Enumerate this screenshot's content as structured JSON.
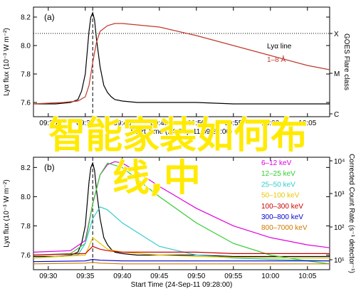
{
  "overlay": {
    "line1": "智能家装如何布",
    "line2": "线,中"
  },
  "chart_data": [
    {
      "panel": "(a)",
      "type": "line",
      "ylabel": "Lyα flux (10⁻³ W m⁻²)",
      "y2label": "GOES Flare class",
      "yticks": [
        "7.6",
        "7.8",
        "8.0",
        "8.2"
      ],
      "ylim": [
        7.5,
        8.27
      ],
      "xlim": [
        "09:28",
        "10:08"
      ],
      "xticks": [
        "09:30",
        "09:35",
        "09:40",
        "09:45",
        "09:50",
        "09:55",
        "10:00",
        "10:05"
      ],
      "class_ticks": [
        "X",
        "M",
        "C"
      ],
      "class_dotted_level": "X",
      "xlabel": "Start Time (24-Sep-11 09:28:00)",
      "marker_time": "09:36",
      "legend": [
        "Lyα line",
        "1–8 Å"
      ],
      "series": [
        {
          "name": "Lyα line",
          "color": "#000000",
          "x": [
            "09:28",
            "09:31",
            "09:33",
            "09:34",
            "09:34:30",
            "09:35",
            "09:35:15",
            "09:35:30",
            "09:35:45",
            "09:36",
            "09:36:15",
            "09:36:30",
            "09:37",
            "09:37:30",
            "09:38",
            "09:38:30",
            "09:39",
            "09:40",
            "09:42",
            "09:45",
            "09:50",
            "09:55",
            "10:00",
            "10:05",
            "10:08"
          ],
          "y": [
            7.59,
            7.59,
            7.6,
            7.62,
            7.68,
            7.8,
            7.95,
            8.1,
            8.2,
            8.23,
            8.18,
            8.05,
            7.85,
            7.72,
            7.67,
            7.64,
            7.62,
            7.61,
            7.6,
            7.6,
            7.6,
            7.59,
            7.59,
            7.59,
            7.59
          ]
        },
        {
          "name": "1–8 Å",
          "color": "#c0392b",
          "x": [
            "09:28",
            "09:32",
            "09:34",
            "09:35",
            "09:35:30",
            "09:36",
            "09:36:30",
            "09:37",
            "09:38",
            "09:39",
            "09:40",
            "09:45",
            "09:50",
            "09:55",
            "10:00",
            "10:05",
            "10:08"
          ],
          "y": [
            7.59,
            7.6,
            7.61,
            7.64,
            7.72,
            7.88,
            8.02,
            8.1,
            8.14,
            8.155,
            8.155,
            8.13,
            8.07,
            8.0,
            7.93,
            7.86,
            7.83
          ]
        }
      ]
    },
    {
      "panel": "(b)",
      "type": "line",
      "ylabel": "Lyα flux (10⁻³ W m⁻²)",
      "y2label": "Corrected Count Rate (s⁻¹ detector⁻¹)",
      "yticks": [
        "7.6",
        "7.8",
        "8.0",
        "8.2"
      ],
      "ylim": [
        7.5,
        8.27
      ],
      "y2ticks": [
        "10¹",
        "10²",
        "10³",
        "10⁴"
      ],
      "xlim": [
        "09:28",
        "10:08"
      ],
      "xticks": [
        "09:30",
        "09:35",
        "09:40",
        "09:45",
        "09:50",
        "09:55",
        "10:00",
        "10:05"
      ],
      "xticklabels": [
        "09:30",
        "09:35",
        "09:40",
        "09:45",
        "09:50",
        "09:55",
        "10:00",
        "10:05"
      ],
      "xlabel": "Start Time (24-Sep-11 09:28:00)",
      "marker_time": "09:36",
      "legend": [
        "6–12 keV",
        "12–25 keV",
        "25–50 keV",
        "50–100 keV",
        "100–300 keV",
        "300–800 keV",
        "800–7000 keV"
      ],
      "series": [
        {
          "name": "Lyα line",
          "color": "#000000",
          "x": [
            "09:28",
            "09:31",
            "09:33",
            "09:34",
            "09:34:30",
            "09:35",
            "09:35:15",
            "09:35:30",
            "09:35:45",
            "09:36",
            "09:36:15",
            "09:36:30",
            "09:37",
            "09:37:30",
            "09:38",
            "09:38:30",
            "09:39",
            "09:40",
            "09:42",
            "09:45",
            "09:50",
            "09:55",
            "10:00",
            "10:05",
            "10:08"
          ],
          "y": [
            7.59,
            7.59,
            7.6,
            7.62,
            7.68,
            7.8,
            7.95,
            8.1,
            8.2,
            8.23,
            8.18,
            8.05,
            7.85,
            7.72,
            7.67,
            7.64,
            7.62,
            7.61,
            7.6,
            7.6,
            7.6,
            7.59,
            7.59,
            7.59,
            7.59
          ]
        },
        {
          "name": "6–12 keV",
          "color": "#e000e0",
          "x": [
            "09:28",
            "09:33",
            "09:35",
            "09:36",
            "09:37",
            "09:38",
            "09:39",
            "09:40",
            "09:42",
            "09:45",
            "09:50",
            "09:55",
            "10:00",
            "10:05",
            "10:08"
          ],
          "y": [
            7.62,
            7.63,
            7.7,
            7.95,
            8.15,
            8.22,
            8.24,
            8.23,
            8.17,
            8.07,
            7.92,
            7.8,
            7.72,
            7.67,
            7.65
          ]
        },
        {
          "name": "12–25 keV",
          "color": "#33cc33",
          "x": [
            "09:28",
            "09:33",
            "09:35",
            "09:36",
            "09:37",
            "09:38",
            "09:40",
            "09:45",
            "09:50",
            "09:55",
            "10:00",
            "10:05",
            "10:08"
          ],
          "y": [
            7.6,
            7.61,
            7.68,
            7.95,
            8.15,
            8.23,
            8.2,
            8.0,
            7.82,
            7.68,
            7.6,
            7.56,
            7.54
          ]
        },
        {
          "name": "25–50 keV",
          "color": "#33cccc",
          "x": [
            "09:28",
            "09:34",
            "09:35",
            "09:36",
            "09:37",
            "09:38",
            "09:40",
            "09:45",
            "09:50",
            "09:55",
            "10:00",
            "10:08"
          ],
          "y": [
            7.58,
            7.6,
            7.68,
            7.85,
            7.93,
            7.91,
            7.82,
            7.66,
            7.6,
            7.58,
            7.57,
            7.56
          ]
        },
        {
          "name": "50–100 keV",
          "color": "#e6c800",
          "x": [
            "09:28",
            "09:35",
            "09:36",
            "09:37",
            "09:38",
            "09:40",
            "09:45",
            "09:50",
            "10:00",
            "10:08"
          ],
          "y": [
            7.58,
            7.6,
            7.72,
            7.68,
            7.64,
            7.62,
            7.6,
            7.59,
            7.58,
            7.58
          ]
        },
        {
          "name": "100–300 keV",
          "color": "#cc0000",
          "x": [
            "09:28",
            "09:35",
            "09:36",
            "09:37",
            "09:38",
            "09:40",
            "09:45",
            "09:50",
            "09:55",
            "10:00",
            "10:05",
            "10:08"
          ],
          "y": [
            7.6,
            7.61,
            7.66,
            7.64,
            7.63,
            7.62,
            7.62,
            7.62,
            7.61,
            7.61,
            7.61,
            7.61
          ]
        },
        {
          "name": "300–800 keV",
          "color": "#0000cc",
          "x": [
            "09:28",
            "09:35",
            "09:36",
            "09:37",
            "09:40",
            "09:50",
            "10:00",
            "10:08"
          ],
          "y": [
            7.555,
            7.56,
            7.57,
            7.565,
            7.56,
            7.56,
            7.56,
            7.56
          ]
        },
        {
          "name": "800–7000 keV",
          "color": "#cc7a00",
          "x": [
            "09:28",
            "09:35",
            "09:36",
            "09:37",
            "09:40",
            "09:50",
            "10:00",
            "10:08"
          ],
          "y": [
            7.54,
            7.545,
            7.55,
            7.545,
            7.54,
            7.54,
            7.54,
            7.54
          ]
        }
      ]
    }
  ]
}
